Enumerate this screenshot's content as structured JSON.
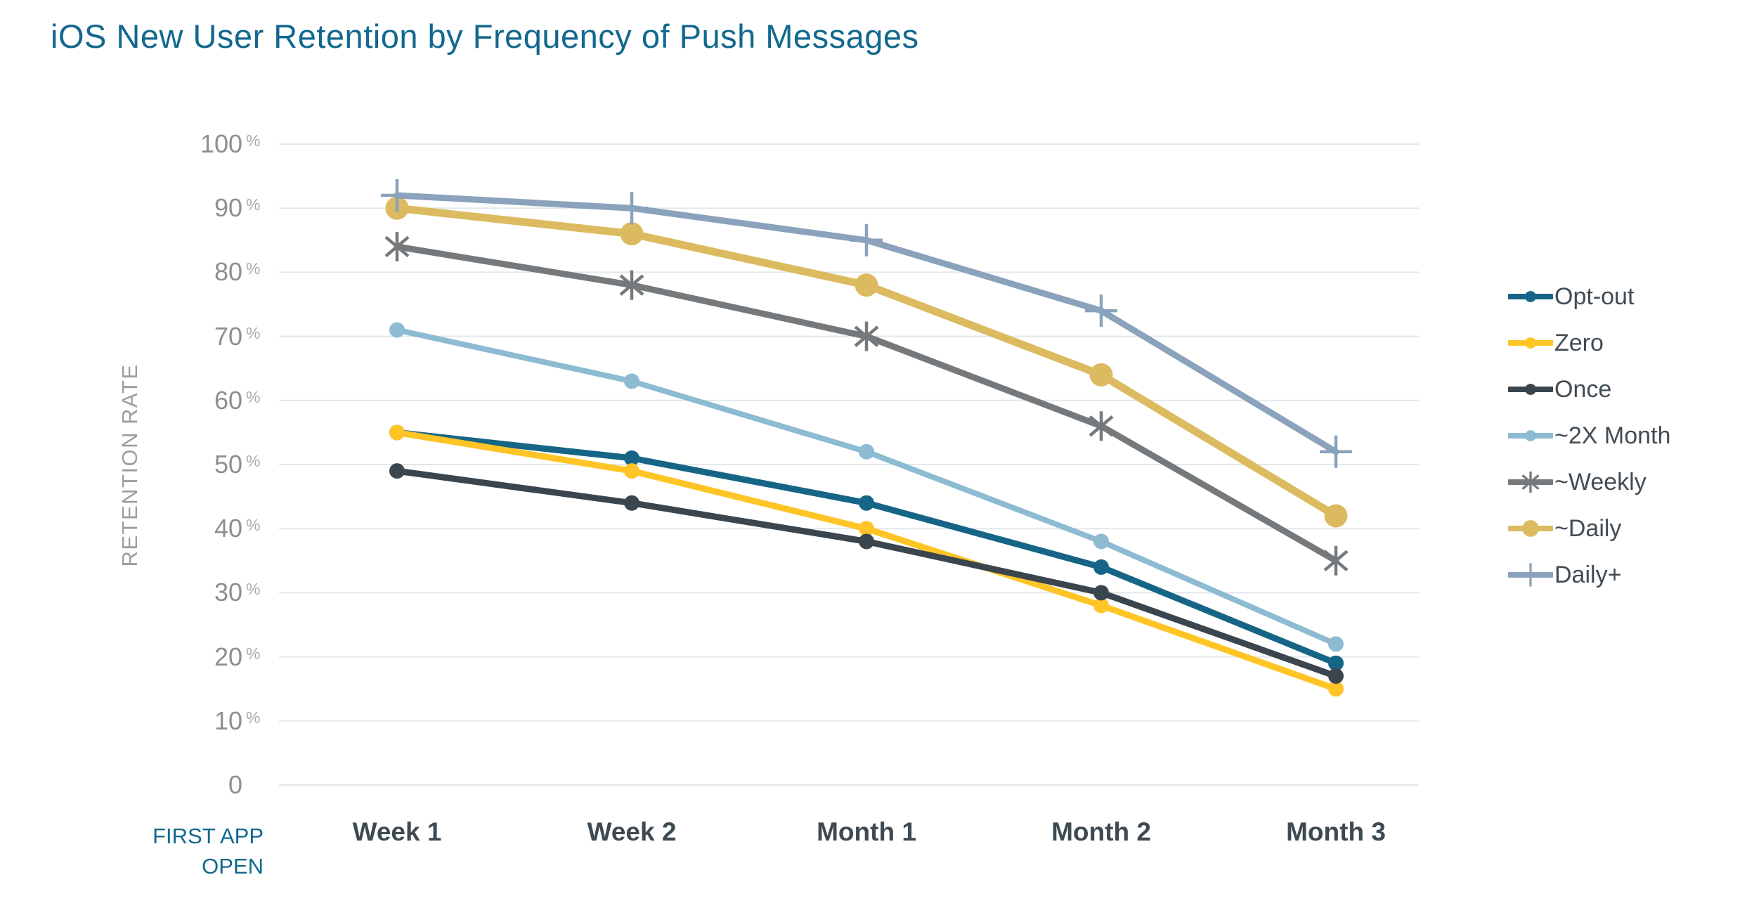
{
  "title": "iOS New User Retention by Frequency of Push Messages",
  "origin_label": "FIRST APP\nOPEN",
  "colors": {
    "title": "#12688E",
    "origin_label": "#12688E",
    "ytick_number": "#8C9093",
    "ytick_percent": "#A7ABAD",
    "y_axis_title": "#9B9EA1",
    "xtick_text": "#3E4A52",
    "legend_text": "#424C54",
    "gridline": "#E3E8EA"
  },
  "chart_data": {
    "type": "line",
    "title": "iOS New User Retention by Frequency of Push Messages",
    "xlabel": "",
    "ylabel": "RETENTION RATE",
    "ylim": [
      0,
      100
    ],
    "yticks": [
      100,
      90,
      80,
      70,
      60,
      50,
      40,
      30,
      20,
      10,
      0
    ],
    "ytick_suffix": "%",
    "grid": "horizontal",
    "legend_position": "right",
    "categories": [
      "Week 1",
      "Week 2",
      "Month 1",
      "Month 2",
      "Month 3"
    ],
    "series": [
      {
        "name": "Opt-out",
        "color": "#166586",
        "marker": "circle",
        "line_width": 9,
        "values": [
          55,
          51,
          44,
          34,
          19
        ]
      },
      {
        "name": "Zero",
        "color": "#FFC425",
        "marker": "circle",
        "line_width": 9,
        "values": [
          55,
          49,
          40,
          28,
          15
        ]
      },
      {
        "name": "Once",
        "color": "#3A454E",
        "marker": "circle",
        "line_width": 9,
        "values": [
          49,
          44,
          38,
          30,
          17
        ]
      },
      {
        "name": "~2X Month",
        "color": "#8CBBD2",
        "marker": "circle",
        "line_width": 8,
        "values": [
          71,
          63,
          52,
          38,
          22
        ]
      },
      {
        "name": "~Weekly",
        "color": "#75797C",
        "marker": "asterisk",
        "line_width": 9,
        "values": [
          84,
          78,
          70,
          56,
          35
        ]
      },
      {
        "name": "~Daily",
        "color": "#DCBA5F",
        "marker": "big-circle",
        "line_width": 11,
        "values": [
          90,
          86,
          78,
          64,
          42
        ]
      },
      {
        "name": "Daily+",
        "color": "#8AA2BB",
        "marker": "plus",
        "line_width": 9,
        "values": [
          92,
          90,
          85,
          74,
          52
        ]
      }
    ]
  }
}
